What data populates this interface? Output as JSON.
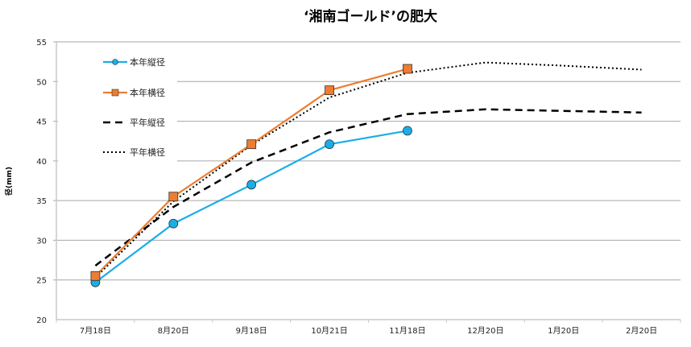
{
  "chart_data": {
    "type": "line",
    "title": "‘湘南ゴールド’の肥大",
    "xlabel": "",
    "ylabel": "径(mm)",
    "ylim": [
      20,
      55
    ],
    "yticks": [
      20,
      25,
      30,
      35,
      40,
      45,
      50,
      55
    ],
    "grid": true,
    "legend_position": "top-left",
    "categories": [
      "7月18日",
      "8月20日",
      "9月18日",
      "10月21日",
      "11月18日",
      "12月20日",
      "1月20日",
      "2月20日"
    ],
    "series": [
      {
        "name": "本年縦径",
        "color": "#1AAEE8",
        "style": "solid",
        "marker": "circle",
        "values": [
          24.7,
          32.1,
          37.0,
          42.1,
          43.8,
          null,
          null,
          null
        ]
      },
      {
        "name": "本年横径",
        "color": "#ED7D31",
        "style": "solid",
        "marker": "square",
        "values": [
          25.5,
          35.5,
          42.1,
          48.9,
          51.6,
          null,
          null,
          null
        ]
      },
      {
        "name": "平年縦径",
        "color": "#000000",
        "style": "dashed",
        "marker": "none",
        "values": [
          26.8,
          34.2,
          39.8,
          43.6,
          45.9,
          46.5,
          46.3,
          46.1
        ]
      },
      {
        "name": "平年横径",
        "color": "#000000",
        "style": "dotted",
        "marker": "none",
        "values": [
          25.3,
          34.9,
          42.0,
          48.0,
          51.1,
          52.4,
          52.0,
          51.5
        ]
      }
    ]
  }
}
